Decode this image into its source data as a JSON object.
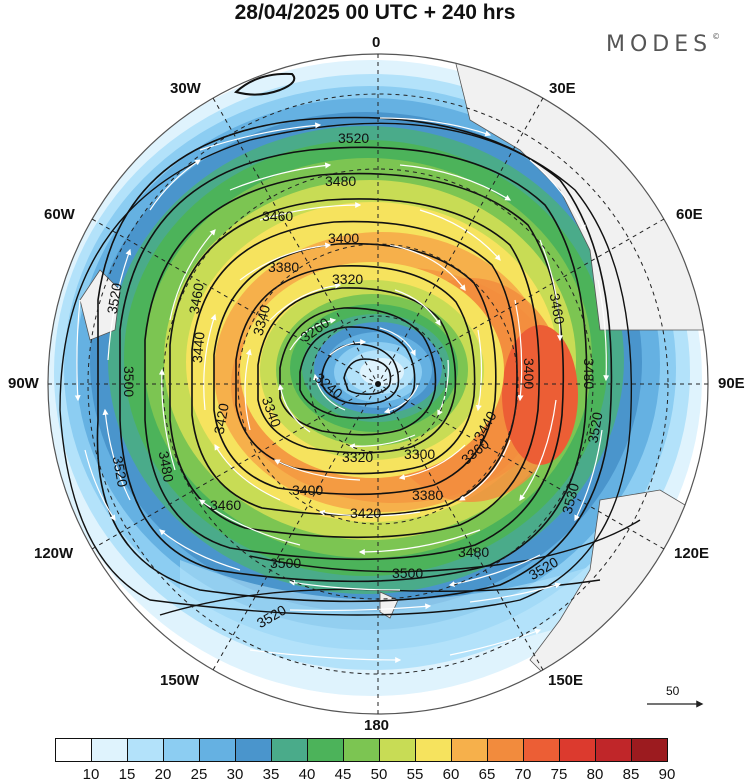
{
  "title": "28/04/2025  00 UTC  + 240 hrs",
  "brand": "MODES",
  "brand_mark": "©",
  "longitude_labels": {
    "n0": "0",
    "n30e": "30E",
    "n60e": "60E",
    "n90e": "90E",
    "n120e": "120E",
    "n150e": "150E",
    "n180": "180",
    "n150w": "150W",
    "n120w": "120W",
    "n90w": "90W",
    "n60w": "60W",
    "n30w": "30W"
  },
  "contour_labels": [
    "3520",
    "3480",
    "3460",
    "3400",
    "3380",
    "3320",
    "3260",
    "3240",
    "3340",
    "3420",
    "3300",
    "3360",
    "3440",
    "3500",
    "3530"
  ],
  "reference_vector": {
    "label": "50"
  },
  "colorbar": {
    "ticks": [
      "10",
      "15",
      "20",
      "25",
      "30",
      "35",
      "40",
      "45",
      "50",
      "55",
      "60",
      "65",
      "70",
      "75",
      "80",
      "85",
      "90"
    ],
    "colors": [
      "#ffffff",
      "#dff3fd",
      "#b3e2fa",
      "#8ccdf2",
      "#65b1e2",
      "#4a95cc",
      "#4aab8a",
      "#4cb35a",
      "#7cc552",
      "#c8dc55",
      "#f6e35e",
      "#f6b04b",
      "#f28b3d",
      "#ec5e35",
      "#dc3a2e",
      "#c02629",
      "#9c1b1f"
    ]
  }
}
